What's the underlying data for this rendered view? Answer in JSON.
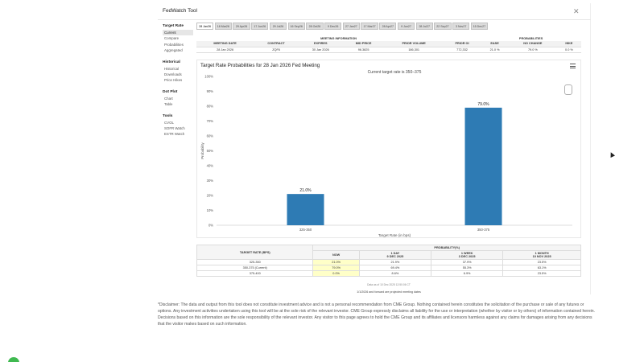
{
  "window": {
    "title": "FedWatch Tool",
    "close_icon": "close-icon"
  },
  "sidebar": {
    "sections": [
      {
        "heading": "Target Rate",
        "items": [
          {
            "label": "Current",
            "active": true
          },
          {
            "label": "Compare"
          },
          {
            "label": "Probabilities"
          },
          {
            "label": "Aggregated"
          }
        ]
      },
      {
        "heading": "Historical",
        "items": [
          {
            "label": "Historical"
          },
          {
            "label": "Downloads"
          },
          {
            "label": "Price Hikes"
          }
        ]
      },
      {
        "heading": "Dot Plot",
        "items": [
          {
            "label": "Chart"
          },
          {
            "label": "Table"
          }
        ]
      },
      {
        "heading": "Tools",
        "items": [
          {
            "label": "CVOL"
          },
          {
            "label": "SOFR Watch"
          },
          {
            "label": "ESTR Watch"
          }
        ]
      }
    ]
  },
  "tabs": [
    "28 Jan26",
    "18 Mar26",
    "29 Apr26",
    "17 Jun26",
    "29 Jul26",
    "16 Sep26",
    "28 Oct26",
    "9 Dec26",
    "27 Jan27",
    "17 Mar27",
    "28 Apr27",
    "9 Jun27",
    "28 Jul27",
    "22 Sep27",
    "3 Nov27",
    "15 Dec27"
  ],
  "meeting_info": {
    "group_headers": {
      "meeting_information": "MEETING INFORMATION",
      "probabilities": "PROBABILITIES"
    },
    "columns": [
      "MEETING DATE",
      "CONTRACT",
      "EXPIRES",
      "MID PRICE",
      "PRIOR VOLUME",
      "PRIOR OI",
      "EASE",
      "NO CHANGE",
      "HIKE"
    ],
    "row": [
      "28 Jan 2026",
      "ZQF6",
      "30 Jan 2026",
      "96.3825",
      "186,301",
      "772,332",
      "21.0 %",
      "79.0 %",
      "0.0 %"
    ]
  },
  "chart": {
    "title": "Target Rate Probabilities for 28 Jan 2026 Fed Meeting",
    "subtitle": "Current target rate is 350–375",
    "menu_icon": "hamburger-menu-icon",
    "watermark_icon": "magnify-icon"
  },
  "chart_data": {
    "type": "bar",
    "categories": [
      "325-350",
      "350-375"
    ],
    "values": [
      21.0,
      79.0
    ],
    "data_labels": [
      "21.0%",
      "79.0%"
    ],
    "title": "Target Rate Probabilities for 28 Jan 2026 Fed Meeting",
    "xlabel": "Target Rate (in bps)",
    "ylabel": "Probability",
    "ylim": [
      0,
      100
    ],
    "yticks": [
      "0%",
      "10%",
      "20%",
      "30%",
      "40%",
      "50%",
      "60%",
      "70%",
      "80%",
      "90%",
      "100%"
    ],
    "bar_color": "#2e7bb4",
    "grid": false
  },
  "prob_table": {
    "header_target": "TARGET RATE (BPS)",
    "header_group": "PROBABILITY(%)",
    "col_heads": [
      {
        "l1": "NOW",
        "l2": ""
      },
      {
        "l1": "1 DAY",
        "l2": "9 DEC 2025"
      },
      {
        "l1": "1 WEEK",
        "l2": "3 DEC 2025"
      },
      {
        "l1": "1 MONTH",
        "l2": "10 NOV 2025"
      }
    ],
    "rows": [
      {
        "rate": "325-350",
        "values": [
          "21.0%",
          "21.9%",
          "37.9%",
          "23.5%"
        ]
      },
      {
        "rate": "350-375 (Current)",
        "values": [
          "79.0%",
          "69.4%",
          "55.3%",
          "63.1%"
        ]
      },
      {
        "rate": "375-400",
        "values": [
          "0.0%",
          "8.6%",
          "6.9%",
          "23.5%"
        ]
      }
    ]
  },
  "updated_text": "Data as of 10 Dec 2025 12:50:06 CT",
  "note": "1/1/2026 and forward are projected meeting dates",
  "disclaimer": "*Disclaimer: The data and output from this tool does not constitute investment advice and is not a personal recommendation from CME Group. Nothing contained herein constitutes the solicitation of the purchase or sale of any futures or options. Any investment activities undertaken using this tool will be at the sole risk of the relevant investor. CME Group expressly disclaims all liability for the use or interpretation (whether by visitor or by others) of information contained herein. Decisions based on this information are the sole responsibility of the relevant investor. Any visitor to this page agrees to hold the CME Group and its affiliates and licensors harmless against any claims for damages arising from any decisions that the visitor makes based on such information."
}
